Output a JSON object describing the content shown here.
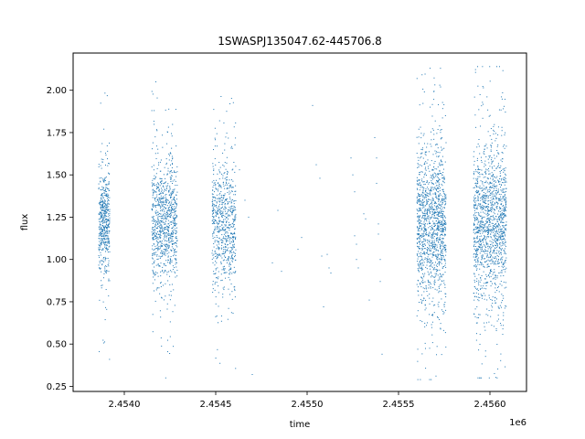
{
  "chart_data": {
    "type": "scatter",
    "title": "1SWASPJ135047.62-445706.8",
    "xlabel": "time",
    "ylabel": "flux",
    "x_offset_label": "1e6",
    "xlim": [
      2.45372,
      2.4562
    ],
    "ylim": [
      0.22,
      2.22
    ],
    "x_ticks": [
      2.454,
      2.4545,
      2.455,
      2.4555,
      2.456
    ],
    "x_tick_labels": [
      "2.4540",
      "2.4545",
      "2.4550",
      "2.4555",
      "2.4560"
    ],
    "y_ticks": [
      0.25,
      0.5,
      0.75,
      1.0,
      1.25,
      1.5,
      1.75,
      2.0
    ],
    "y_tick_labels": [
      "0.25",
      "0.50",
      "0.75",
      "1.00",
      "1.25",
      "1.50",
      "1.75",
      "2.00"
    ],
    "grid": false,
    "marker_color": "#1f77b4",
    "clusters": [
      {
        "x_start": 2.45386,
        "x_end": 2.45392,
        "center": 1.22,
        "spread": 0.14,
        "min": 0.3,
        "max": 2.08,
        "points": 500
      },
      {
        "x_start": 2.45415,
        "x_end": 2.45429,
        "center": 1.21,
        "spread": 0.18,
        "min": 0.3,
        "max": 2.05,
        "points": 900
      },
      {
        "x_start": 2.45448,
        "x_end": 2.45461,
        "center": 1.2,
        "spread": 0.18,
        "min": 0.33,
        "max": 2.12,
        "points": 700
      },
      {
        "x_start": 2.4556,
        "x_end": 2.45576,
        "center": 1.21,
        "spread": 0.22,
        "min": 0.29,
        "max": 2.13,
        "points": 1300
      },
      {
        "x_start": 2.45591,
        "x_end": 2.45609,
        "center": 1.21,
        "spread": 0.22,
        "min": 0.3,
        "max": 2.14,
        "points": 1400
      }
    ],
    "sparse_points": [
      [
        2.45463,
        1.53
      ],
      [
        2.45466,
        1.35
      ],
      [
        2.45468,
        1.25
      ],
      [
        2.4547,
        0.32
      ],
      [
        2.45481,
        0.98
      ],
      [
        2.45484,
        1.29
      ],
      [
        2.45486,
        0.93
      ],
      [
        2.45495,
        1.06
      ],
      [
        2.45497,
        1.13
      ],
      [
        2.45503,
        1.91
      ],
      [
        2.45505,
        1.56
      ],
      [
        2.45507,
        1.48
      ],
      [
        2.45508,
        1.02
      ],
      [
        2.45509,
        0.72
      ],
      [
        2.45511,
        1.03
      ],
      [
        2.45512,
        0.95
      ],
      [
        2.45513,
        0.92
      ],
      [
        2.45524,
        1.6
      ],
      [
        2.45525,
        1.5
      ],
      [
        2.45526,
        1.4
      ],
      [
        2.45526,
        1.14
      ],
      [
        2.45527,
        1.09
      ],
      [
        2.45527,
        1.0
      ],
      [
        2.45528,
        0.95
      ],
      [
        2.45531,
        1.27
      ],
      [
        2.45532,
        1.24
      ],
      [
        2.45534,
        0.76
      ],
      [
        2.45537,
        1.72
      ],
      [
        2.45538,
        1.6
      ],
      [
        2.45538,
        1.45
      ],
      [
        2.45539,
        1.21
      ],
      [
        2.45539,
        1.15
      ],
      [
        2.4554,
        1.0
      ],
      [
        2.4554,
        0.87
      ],
      [
        2.45541,
        0.44
      ]
    ]
  }
}
